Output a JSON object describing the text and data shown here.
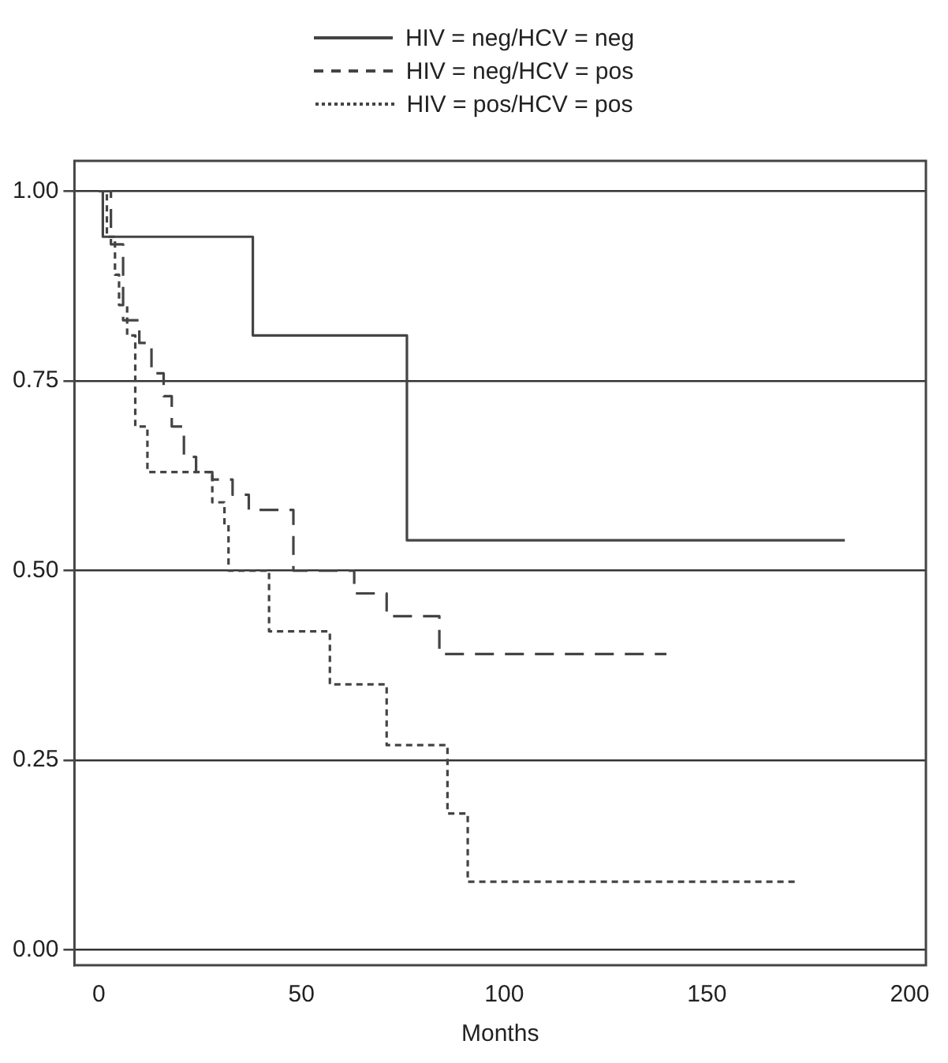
{
  "chart_data": {
    "type": "step",
    "xlabel": "Months",
    "legend": "top",
    "grid": "y",
    "xlim": [
      -6,
      204
    ],
    "xticks": [
      0,
      50,
      100,
      150,
      200
    ],
    "ylim": [
      -0.02,
      1.04
    ],
    "yticks": [
      {
        "value": 0,
        "label": "0.00"
      },
      {
        "value": 0.25,
        "label": "0.25"
      },
      {
        "value": 0.5,
        "label": "0.50"
      },
      {
        "value": 0.75,
        "label": "0.75"
      },
      {
        "value": 1,
        "label": "1.00"
      }
    ],
    "series": [
      {
        "name": "HIV = neg/HCV = neg",
        "color": "#444444",
        "line_style": "solid",
        "x": [
          0,
          1,
          38,
          76,
          184
        ],
        "values": [
          1,
          0.94,
          0.81,
          0.54,
          0.54
        ]
      },
      {
        "name": "HIV = neg/HCV = pos",
        "color": "#444444",
        "line_style": "dashed",
        "x": [
          0,
          3,
          6,
          10,
          13,
          16,
          18,
          21,
          24,
          28,
          33,
          37,
          48,
          63,
          71,
          84,
          140
        ],
        "values": [
          1,
          0.93,
          0.83,
          0.8,
          0.76,
          0.73,
          0.69,
          0.65,
          0.63,
          0.62,
          0.6,
          0.58,
          0.5,
          0.47,
          0.44,
          0.39,
          0.39
        ]
      },
      {
        "name": "HIV = pos/HCV = pos",
        "color": "#444444",
        "line_style": "dotted",
        "x": [
          0,
          2,
          4,
          5,
          7,
          9,
          12,
          28,
          31,
          32,
          42,
          57,
          71,
          86,
          91,
          172
        ],
        "values": [
          1,
          0.94,
          0.89,
          0.85,
          0.81,
          0.69,
          0.63,
          0.59,
          0.56,
          0.5,
          0.42,
          0.35,
          0.27,
          0.18,
          0.09,
          0.09
        ]
      }
    ]
  }
}
